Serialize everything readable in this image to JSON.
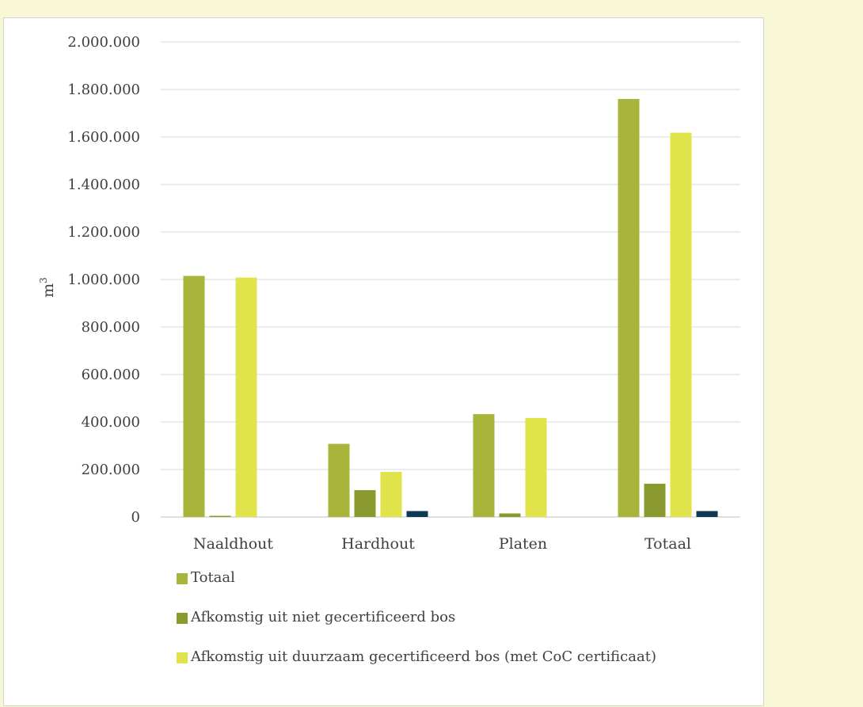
{
  "chart_data": {
    "type": "bar",
    "title": "",
    "xlabel": "",
    "ylabel": "m",
    "ylabel_superscript": "3",
    "categories": [
      "Naaldhout",
      "Hardhout",
      "Platen",
      "Totaal"
    ],
    "ylim": [
      0,
      2000000
    ],
    "yticks": [
      0,
      200000,
      400000,
      600000,
      800000,
      1000000,
      1200000,
      1400000,
      1600000,
      1800000,
      2000000
    ],
    "ytick_labels": [
      "0",
      "200.000",
      "400.000",
      "600.000",
      "800.000",
      "1.000.000",
      "1.200.000",
      "1.400.000",
      "1.600.000",
      "1.800.000",
      "2.000.000"
    ],
    "grid": true,
    "legend_position": "bottom",
    "series": [
      {
        "name": "Totaal",
        "color": "#a9b43b",
        "values": [
          1015000,
          308000,
          433000,
          1760000
        ]
      },
      {
        "name": "Afkomstig uit niet gecertificeerd bos",
        "color": "#8b9a2e",
        "values": [
          5000,
          113000,
          15000,
          140000
        ]
      },
      {
        "name": "Afkomstig uit duurzaam gecertificeerd bos (met CoC certificaat)",
        "color": "#e1e34a",
        "values": [
          1008000,
          190000,
          417000,
          1618000
        ]
      },
      {
        "color": "#0e3a56",
        "values": [
          0,
          25000,
          0,
          25000
        ]
      }
    ]
  }
}
